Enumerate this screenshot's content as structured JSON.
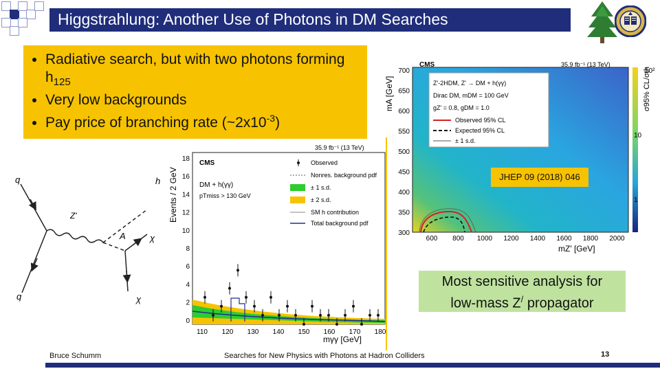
{
  "slide": {
    "title": "Higgstrahlung: Another Use of Photons in DM Searches",
    "bullets": [
      {
        "text": "Radiative search, but with two photons forming h",
        "sub": "125"
      },
      {
        "text": "Very low backgrounds"
      },
      {
        "text": "Pay price of branching rate (~2x10",
        "sup": "-3",
        "after": ")"
      }
    ],
    "callout": {
      "line1": "Most sensitive analysis for",
      "line2_pre": "low-mass Z",
      "line2_sup": "/",
      "line2_post": " propagator"
    },
    "reference": "JHEP 09 (2018) 046",
    "footer": {
      "author": "Bruce Schumm",
      "talk": "Searches for New Physics with Photons at Hadron Colliders",
      "page": "13"
    }
  },
  "feynman": {
    "labels": {
      "q_top": "q",
      "q_bottom": "q",
      "zprime": "Z'",
      "higgs": "h",
      "a": "A",
      "chi_top": "χ",
      "chi_bottom": "χ"
    }
  },
  "limit_plot": {
    "experiment": "CMS",
    "lumi": "35.9 fb⁻¹ (13 TeV)",
    "ylabel": "mA [GeV]",
    "xlabel": "mZ' [GeV]",
    "zlabel": "σ95% CL/σth",
    "y_ticks": [
      "700",
      "650",
      "600",
      "550",
      "500",
      "450",
      "400",
      "350",
      "300"
    ],
    "x_ticks": [
      "600",
      "800",
      "1000",
      "1200",
      "1400",
      "1600",
      "1800",
      "2000"
    ],
    "z_ticks": [
      "10²",
      "10",
      "1"
    ],
    "legend": {
      "model": "Z'-2HDM, Z' → DM + h(γγ)",
      "dm": "Dirac DM, mDM = 100 GeV",
      "couplings": "gZ' = 0.8, gDM = 1.0",
      "observed": "Observed 95% CL",
      "expected": "Expected 95% CL",
      "band": "± 1 s.d."
    }
  },
  "mass_plot": {
    "experiment": "CMS",
    "lumi": "35.9 fb⁻¹ (13 TeV)",
    "ylabel": "Events / 2 GeV",
    "xlabel": "mγγ [GeV]",
    "selection_1": "DM + h(γγ)",
    "selection_2": "pTmiss > 130 GeV",
    "y_ticks": [
      "18",
      "16",
      "14",
      "12",
      "10",
      "8",
      "6",
      "4",
      "2",
      "0"
    ],
    "x_ticks": [
      "110",
      "120",
      "130",
      "140",
      "150",
      "160",
      "170",
      "180"
    ],
    "legend": [
      "Observed",
      "Nonres. background pdf",
      "± 1 s.d.",
      "± 2 s.d.",
      "SM h contribution",
      "Total background pdf"
    ]
  },
  "colors": {
    "navy": "#1f2d7a",
    "bullet_bg": "#f7c300",
    "callout_bg": "#bfe39f"
  }
}
